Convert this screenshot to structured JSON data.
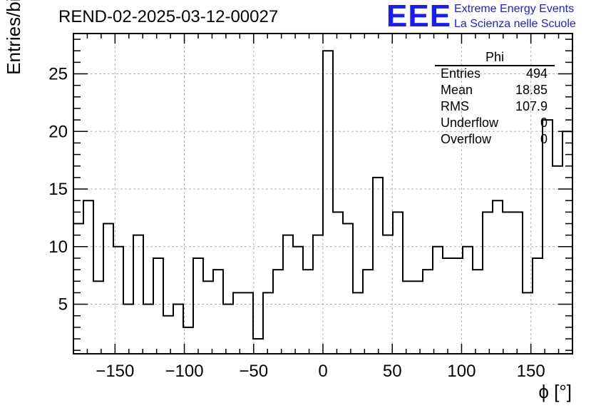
{
  "header": {
    "run_title": "REND-02-2025-03-12-00027",
    "logo_text": "EEE",
    "logo_line1": "Extreme Energy Events",
    "logo_line2": "La Scienza nelle Scuole"
  },
  "stats": {
    "name": "Phi",
    "rows": [
      {
        "key": "Entries",
        "value": "494"
      },
      {
        "key": "Mean",
        "value": "18.85"
      },
      {
        "key": "RMS",
        "value": "107.9"
      },
      {
        "key": "Underflow",
        "value": "0"
      },
      {
        "key": "Overflow",
        "value": "0"
      }
    ]
  },
  "colors": {
    "logo": "#1a1aff",
    "histogram_line": "#000000",
    "grid": "#b0b0b0"
  },
  "chart_data": {
    "type": "histogram",
    "xlabel": "ϕ [°]",
    "ylabel": "Entries/bin",
    "xlim": [
      -180,
      180
    ],
    "ylim": [
      0.7,
      28.5
    ],
    "grid": true,
    "bin_width": 7.2,
    "bin_edges_start": -180,
    "x_ticks": [
      -150,
      -100,
      -50,
      0,
      50,
      100,
      150
    ],
    "x_tick_labels": [
      "−150",
      "−100",
      "−50",
      "0",
      "50",
      "100",
      "150"
    ],
    "y_ticks": [
      5,
      10,
      15,
      20,
      25
    ],
    "y_tick_labels": [
      "5",
      "10",
      "15",
      "20",
      "25"
    ],
    "values": [
      12,
      14,
      7,
      12,
      10,
      5,
      11,
      5,
      9,
      4,
      5,
      3,
      9,
      7,
      8,
      5,
      6,
      6,
      2,
      6,
      8,
      11,
      10,
      8,
      11,
      27,
      13,
      12,
      6,
      8,
      16,
      11,
      13,
      7,
      7,
      8,
      10,
      9,
      9,
      10,
      8,
      13,
      14,
      13,
      13,
      6,
      9,
      21,
      17,
      20
    ]
  }
}
